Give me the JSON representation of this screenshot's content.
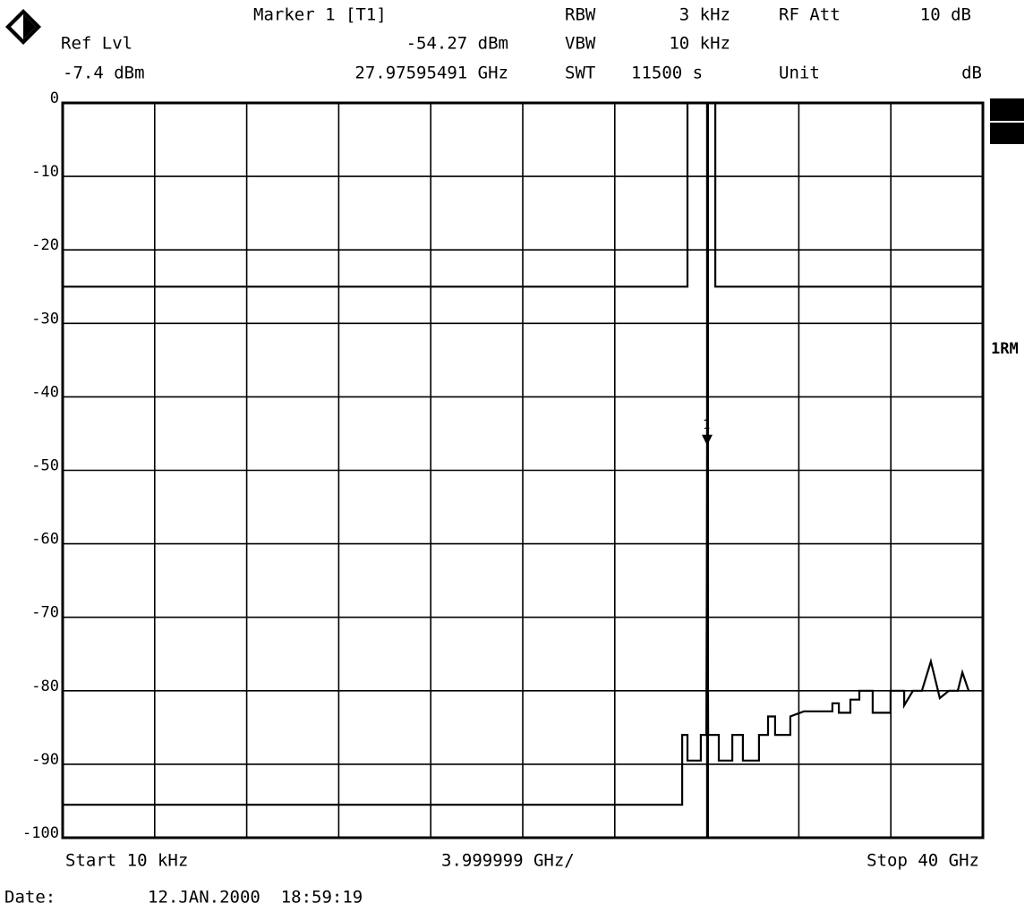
{
  "header": {
    "ref_lvl_label": "Ref Lvl",
    "ref_lvl": "-7.4 dBm",
    "marker_title": "Marker 1 [T1]",
    "marker_level": "-54.27 dBm",
    "marker_freq": "27.97595491 GHz",
    "rbw_label": "RBW",
    "rbw": "3 kHz",
    "vbw_label": "VBW",
    "vbw": "10 kHz",
    "swt_label": "SWT",
    "swt": "11500 s",
    "rf_att_label": "RF Att",
    "rf_att": "10 dB",
    "unit_label": "Unit",
    "unit": "dB",
    "trace_mode": "1RM"
  },
  "footer": {
    "start": "Start 10 kHz",
    "span_per_div": "3.999999 GHz/",
    "stop": "Stop 40 GHz",
    "date_label": "Date:",
    "date": "12.JAN.2000  18:59:19"
  },
  "chart_data": {
    "type": "line",
    "xlim": [
      1e-05,
      40
    ],
    "xticks": [
      4,
      8,
      12,
      16,
      20,
      24,
      28,
      32,
      36
    ],
    "ylim": [
      -100,
      0
    ],
    "yticks": [
      0,
      -10,
      -20,
      -30,
      -40,
      -50,
      -60,
      -70,
      -80,
      -90,
      -100
    ],
    "grid": true,
    "series": [
      {
        "color": "#000000",
        "x": [
          1e-05,
          26.93,
          26.93,
          27.16,
          27.16,
          27.74,
          27.74,
          27.98,
          28.02,
          28.06,
          28.52,
          28.52,
          29.11,
          29.11,
          29.57,
          29.57,
          30.27,
          30.27,
          30.66,
          30.66,
          30.97,
          30.97,
          31.63,
          31.63,
          32.22,
          33.46,
          33.46,
          33.74,
          33.74,
          34.24,
          34.24,
          34.63,
          34.63,
          35.21,
          35.21,
          35.99,
          35.99,
          36.58,
          36.58,
          36.96,
          37.35,
          37.74,
          38.13,
          38.52,
          38.91,
          39.11,
          39.38
        ],
        "values": [
          -95.5,
          -95.5,
          -86,
          -86,
          -89.5,
          -89.5,
          -86,
          -86,
          -46.9,
          -86,
          -86,
          -89.5,
          -89.5,
          -86,
          -86,
          -89.5,
          -89.5,
          -86,
          -86,
          -83.5,
          -83.5,
          -86,
          -86,
          -83.5,
          -82.8,
          -82.8,
          -81.7,
          -81.7,
          -83,
          -83,
          -81.2,
          -81.2,
          -80,
          -80,
          -83,
          -83,
          -80,
          -80,
          -82,
          -80,
          -80,
          -76,
          -81,
          -80,
          -80,
          -77.5,
          -80
        ]
      },
      {
        "color": "#000000",
        "x": [
          1e-05,
          27.16,
          27.16,
          null,
          28.37,
          28.37,
          40
        ],
        "values": [
          -25,
          -25,
          0,
          null,
          0,
          -25,
          -25
        ]
      }
    ],
    "marker": {
      "label": "1",
      "x": 27.97595491,
      "y": -46.87
    }
  }
}
